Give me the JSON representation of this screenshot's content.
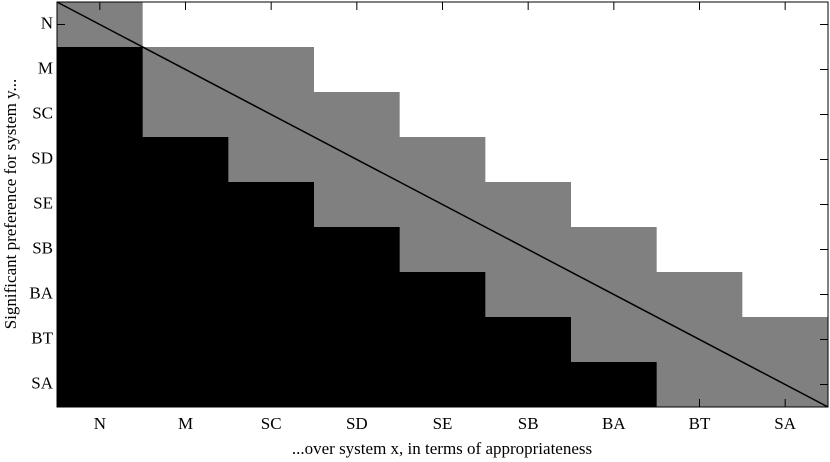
{
  "chart_data": {
    "type": "heatmap",
    "x_label": "...over system x, in terms of appropriateness",
    "y_label": "Significant preference for system y...",
    "x_categories": [
      "N",
      "M",
      "SC",
      "SD",
      "SE",
      "SB",
      "BA",
      "BT",
      "SA"
    ],
    "y_categories": [
      "N",
      "M",
      "SC",
      "SD",
      "SE",
      "SB",
      "BA",
      "BT",
      "SA"
    ],
    "levels": [
      -1,
      0,
      1
    ],
    "level_colors": [
      "#ffffff",
      "#808080",
      "#000000"
    ],
    "values": [
      [
        0,
        -1,
        -1,
        -1,
        -1,
        -1,
        -1,
        -1,
        -1
      ],
      [
        1,
        0,
        0,
        -1,
        -1,
        -1,
        -1,
        -1,
        -1
      ],
      [
        1,
        0,
        0,
        0,
        -1,
        -1,
        -1,
        -1,
        -1
      ],
      [
        1,
        1,
        0,
        0,
        0,
        -1,
        -1,
        -1,
        -1
      ],
      [
        1,
        1,
        1,
        0,
        0,
        0,
        -1,
        -1,
        -1
      ],
      [
        1,
        1,
        1,
        1,
        0,
        0,
        0,
        -1,
        -1
      ],
      [
        1,
        1,
        1,
        1,
        1,
        0,
        0,
        0,
        -1
      ],
      [
        1,
        1,
        1,
        1,
        1,
        1,
        0,
        0,
        0
      ],
      [
        1,
        1,
        1,
        1,
        1,
        1,
        1,
        0,
        0
      ]
    ]
  }
}
